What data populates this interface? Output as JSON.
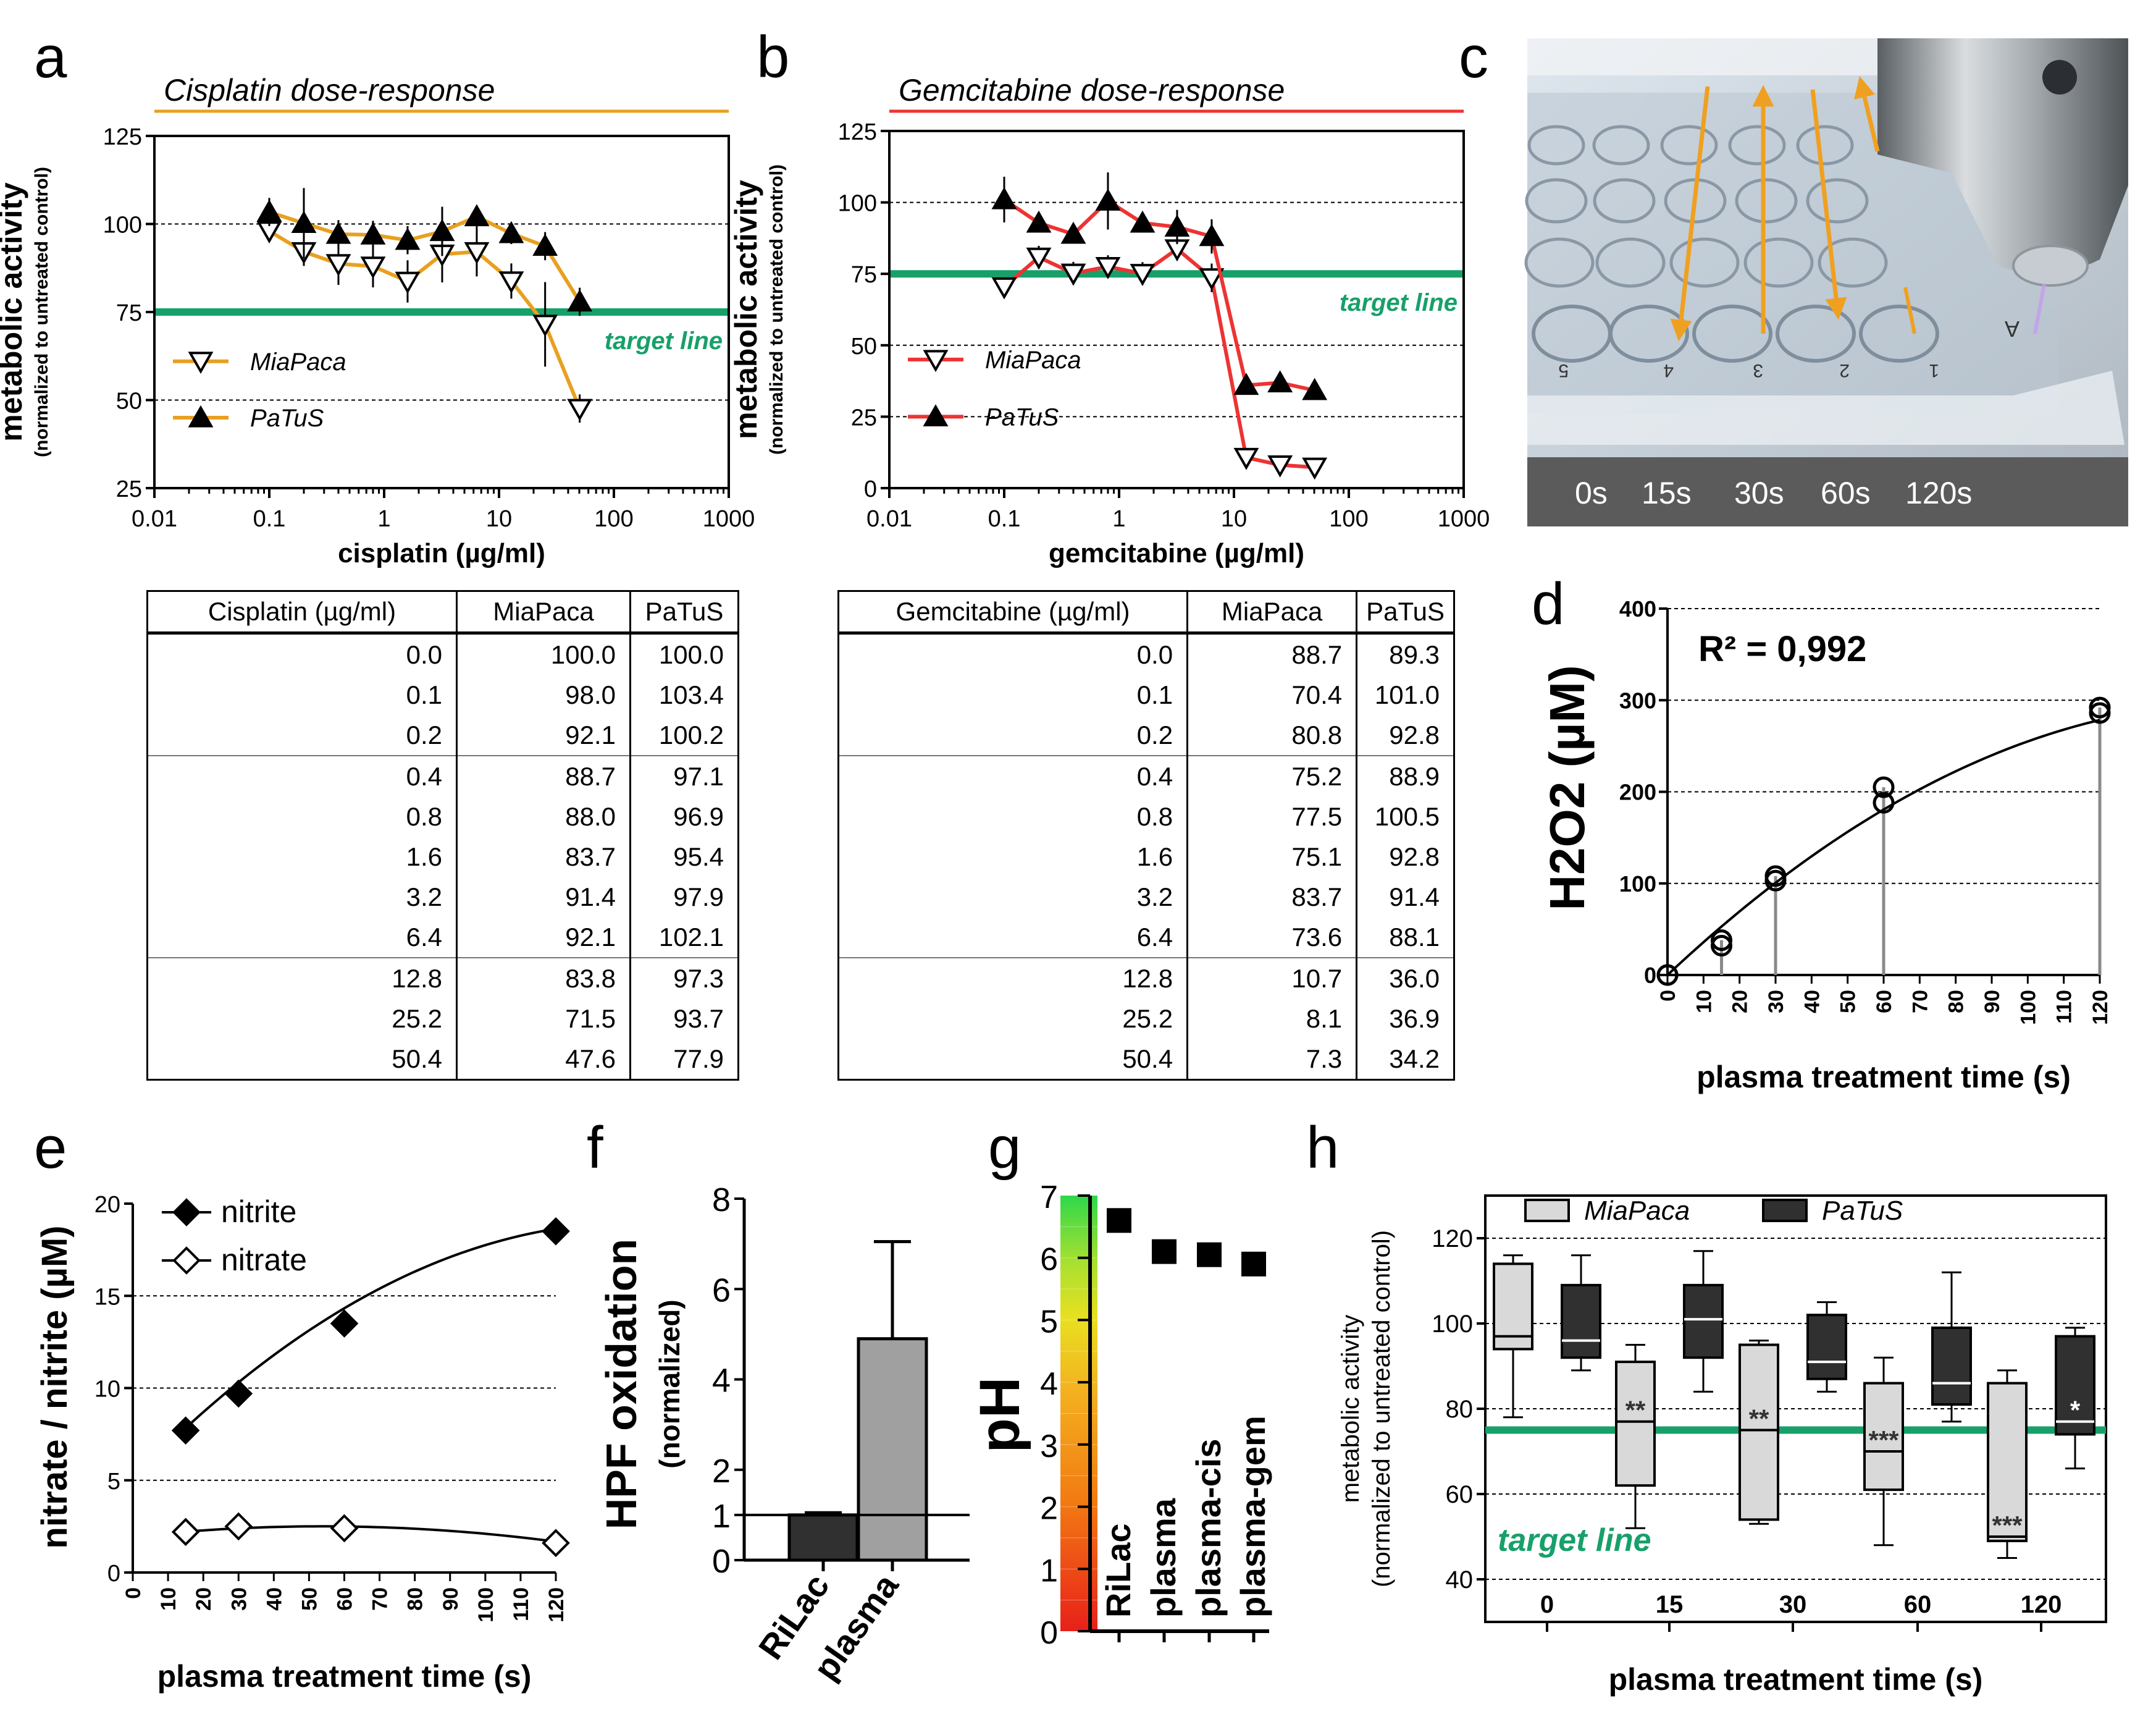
{
  "panel_letters": {
    "a": "a",
    "b": "b",
    "c": "c",
    "d": "d",
    "e": "e",
    "f": "f",
    "g": "g",
    "h": "h"
  },
  "target_label": "target line",
  "colors": {
    "cis": "#e8a020",
    "gem": "#ee3333",
    "target": "#17a06a",
    "box_light": "#d9d9d9",
    "box_dark": "#303030",
    "bar_light": "#a0a0a0",
    "bar_dark": "#303030"
  },
  "photo": {
    "time_labels": [
      "0s",
      "15s",
      "30s",
      "60s",
      "120s"
    ],
    "well_numbers": [
      "5",
      "4",
      "3",
      "2",
      "1"
    ],
    "row_letter": "A"
  },
  "table_a": {
    "headers": [
      "Cisplatin (µg/ml)",
      "MiaPaca",
      "PaTuS"
    ],
    "rows": [
      [
        "0.0",
        "100.0",
        "100.0"
      ],
      [
        "0.1",
        "98.0",
        "103.4"
      ],
      [
        "0.2",
        "92.1",
        "100.2"
      ],
      [
        "0.4",
        "88.7",
        "97.1"
      ],
      [
        "0.8",
        "88.0",
        "96.9"
      ],
      [
        "1.6",
        "83.7",
        "95.4"
      ],
      [
        "3.2",
        "91.4",
        "97.9"
      ],
      [
        "6.4",
        "92.1",
        "102.1"
      ],
      [
        "12.8",
        "83.8",
        "97.3"
      ],
      [
        "25.2",
        "71.5",
        "93.7"
      ],
      [
        "50.4",
        "47.6",
        "77.9"
      ]
    ]
  },
  "table_b": {
    "headers": [
      "Gemcitabine (µg/ml)",
      "MiaPaca",
      "PaTuS"
    ],
    "rows": [
      [
        "0.0",
        "88.7",
        "89.3"
      ],
      [
        "0.1",
        "70.4",
        "101.0"
      ],
      [
        "0.2",
        "80.8",
        "92.8"
      ],
      [
        "0.4",
        "75.2",
        "88.9"
      ],
      [
        "0.8",
        "77.5",
        "100.5"
      ],
      [
        "1.6",
        "75.1",
        "92.8"
      ],
      [
        "3.2",
        "83.7",
        "91.4"
      ],
      [
        "6.4",
        "73.6",
        "88.1"
      ],
      [
        "12.8",
        "10.7",
        "36.0"
      ],
      [
        "25.2",
        "8.1",
        "36.9"
      ],
      [
        "50.4",
        "7.3",
        "34.2"
      ]
    ]
  },
  "chart_data": [
    {
      "id": "a",
      "type": "line",
      "title": "Cisplatin dose-response",
      "xlabel": "cisplatin (µg/ml)",
      "ylabel": "metabolic activity",
      "ylabel2": "(normalized to untreated control)",
      "xscale": "log",
      "xlim": [
        0.01,
        1000
      ],
      "ylim": [
        25,
        125
      ],
      "xticks": [
        0.01,
        0.1,
        1,
        10,
        100,
        1000
      ],
      "xtick_labels": [
        "0.01",
        "0.1",
        "1",
        "10",
        "100",
        "1000"
      ],
      "yticks": [
        25,
        50,
        75,
        100,
        125
      ],
      "target": 75,
      "x": [
        0.1,
        0.2,
        0.4,
        0.8,
        1.6,
        3.2,
        6.4,
        12.8,
        25.2,
        50.4
      ],
      "series": [
        {
          "name": "MiaPaca",
          "marker": "open-triangle-down",
          "values": [
            98.0,
            92.1,
            88.7,
            88.0,
            83.7,
            91.4,
            92.1,
            83.8,
            71.5,
            47.6
          ],
          "err": [
            3,
            4,
            6,
            6,
            6,
            8,
            7,
            5,
            12,
            4
          ]
        },
        {
          "name": "PaTuS",
          "marker": "filled-triangle-up",
          "values": [
            103.4,
            100.2,
            97.1,
            96.9,
            95.4,
            97.9,
            102.1,
            97.3,
            93.7,
            77.9
          ],
          "err": [
            4,
            10,
            4,
            4,
            4,
            7,
            3,
            3,
            4,
            4
          ]
        }
      ]
    },
    {
      "id": "b",
      "type": "line",
      "title": "Gemcitabine dose-response",
      "xlabel": "gemcitabine (µg/ml)",
      "ylabel": "metabolic activity",
      "ylabel2": "(normalized to untreated control)",
      "xscale": "log",
      "xlim": [
        0.01,
        1000
      ],
      "ylim": [
        0,
        125
      ],
      "xticks": [
        0.01,
        0.1,
        1,
        10,
        100,
        1000
      ],
      "xtick_labels": [
        "0.01",
        "0.1",
        "1",
        "10",
        "100",
        "1000"
      ],
      "yticks": [
        0,
        25,
        50,
        75,
        100,
        125
      ],
      "target": 75,
      "x": [
        0.1,
        0.2,
        0.4,
        0.8,
        1.6,
        3.2,
        6.4,
        12.8,
        25.2,
        50.4
      ],
      "series": [
        {
          "name": "MiaPaca",
          "marker": "open-triangle-down",
          "values": [
            70.4,
            80.8,
            75.2,
            77.5,
            75.1,
            83.7,
            73.6,
            10.7,
            8.1,
            7.3
          ],
          "err": [
            3,
            4,
            4,
            4,
            4,
            4,
            5,
            2,
            1,
            1
          ]
        },
        {
          "name": "PaTuS",
          "marker": "filled-triangle-up",
          "values": [
            101.0,
            92.8,
            88.9,
            100.5,
            92.8,
            91.4,
            88.1,
            36.0,
            36.9,
            34.2
          ],
          "err": [
            8,
            3,
            3,
            10,
            3,
            6,
            6,
            2,
            1,
            1
          ]
        }
      ]
    },
    {
      "id": "d",
      "type": "scatter",
      "annotation": "R² = 0,992",
      "xlabel": "plasma treatment time (s)",
      "ylabel": "H2O2 (µM)",
      "xlim": [
        0,
        120
      ],
      "ylim": [
        0,
        400
      ],
      "xticks": [
        0,
        10,
        20,
        30,
        40,
        50,
        60,
        70,
        80,
        90,
        100,
        110,
        120
      ],
      "yticks": [
        0,
        100,
        200,
        300,
        400
      ],
      "x": [
        0,
        0,
        15,
        15,
        30,
        30,
        60,
        60,
        120,
        120
      ],
      "values": [
        0,
        0,
        32,
        38,
        103,
        108,
        188,
        205,
        286,
        292
      ]
    },
    {
      "id": "e",
      "type": "scatter",
      "xlabel": "plasma treatment time (s)",
      "ylabel": "nitrate / nitrite (µM)",
      "xlim": [
        0,
        120
      ],
      "ylim": [
        0,
        20
      ],
      "xticks": [
        0,
        10,
        20,
        30,
        40,
        50,
        60,
        70,
        80,
        90,
        100,
        110,
        120
      ],
      "yticks": [
        0,
        5,
        10,
        15,
        20
      ],
      "x": [
        15,
        30,
        60,
        120
      ],
      "series": [
        {
          "name": "nitrite",
          "marker": "filled-diamond",
          "values": [
            7.7,
            9.7,
            13.5,
            18.5
          ]
        },
        {
          "name": "nitrate",
          "marker": "open-diamond",
          "values": [
            2.2,
            2.5,
            2.4,
            1.6
          ]
        }
      ]
    },
    {
      "id": "f",
      "type": "bar",
      "ylabel": "HPF oxidation",
      "ylabel2": "(normalized)",
      "ylim": [
        0,
        8
      ],
      "yticks": [
        0,
        1,
        2,
        4,
        6,
        8
      ],
      "categories": [
        "RiLac",
        "plasma"
      ],
      "values": [
        1.0,
        4.9
      ],
      "err": [
        0.05,
        2.15
      ]
    },
    {
      "id": "g",
      "type": "scatter",
      "ylabel": "pH",
      "ylim": [
        0,
        7
      ],
      "yticks": [
        0,
        1,
        2,
        3,
        4,
        5,
        6,
        7
      ],
      "categories": [
        "RiLac",
        "plasma",
        "plasma-cis",
        "plasma-gem"
      ],
      "values": [
        6.6,
        6.1,
        6.05,
        5.9
      ]
    },
    {
      "id": "h",
      "type": "box",
      "legend": [
        "MiaPaca",
        "PaTuS"
      ],
      "xlabel": "plasma treatment time (s)",
      "ylabel": "metabolic activity",
      "ylabel2": "(normalized to untreated control)",
      "ylim": [
        30,
        130
      ],
      "yticks": [
        40,
        60,
        80,
        100,
        120
      ],
      "target": 75,
      "categories": [
        "0",
        "15",
        "30",
        "60",
        "120"
      ],
      "series": [
        {
          "name": "MiaPaca",
          "boxes": [
            [
              78,
              94,
              97,
              114,
              116
            ],
            [
              52,
              62,
              77,
              91,
              95
            ],
            [
              53,
              54,
              75,
              95,
              96
            ],
            [
              48,
              61,
              70,
              86,
              92
            ],
            [
              45,
              49,
              50,
              86,
              89
            ]
          ],
          "sig": [
            "",
            "**",
            "**",
            "***",
            "***"
          ]
        },
        {
          "name": "PaTuS",
          "boxes": [
            [
              89,
              92,
              96,
              109,
              116
            ],
            [
              84,
              92,
              101,
              109,
              117
            ],
            [
              84,
              87,
              91,
              102,
              105
            ],
            [
              77,
              81,
              86,
              99,
              112
            ],
            [
              66,
              74,
              77,
              97,
              99
            ]
          ],
          "sig": [
            "",
            "",
            "",
            "",
            "*"
          ]
        }
      ]
    }
  ]
}
